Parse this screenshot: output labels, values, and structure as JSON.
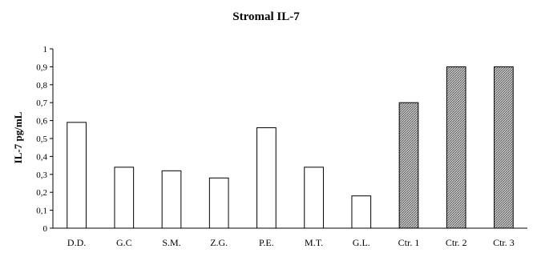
{
  "chart_data": {
    "type": "bar",
    "title": "Stromal IL-7",
    "ylabel": "IL-7 pg/mL",
    "xlabel": "",
    "ylim": [
      0,
      1
    ],
    "yticks": [
      "0",
      "0,1",
      "0,2",
      "0,3",
      "0,4",
      "0,5",
      "0,6",
      "0,7",
      "0,8",
      "0,9",
      "1"
    ],
    "categories": [
      "D.D.",
      "G.C",
      "S.M.",
      "Z.G.",
      "P.E.",
      "M.T.",
      "G.L.",
      "Ctr. 1",
      "Ctr. 2",
      "Ctr. 3"
    ],
    "values": [
      0.59,
      0.34,
      0.32,
      0.28,
      0.56,
      0.34,
      0.18,
      0.7,
      0.9,
      0.9
    ],
    "bar_fill": [
      "white",
      "white",
      "white",
      "white",
      "white",
      "white",
      "white",
      "hatched",
      "hatched",
      "hatched"
    ],
    "grid": false,
    "legend": "none"
  }
}
